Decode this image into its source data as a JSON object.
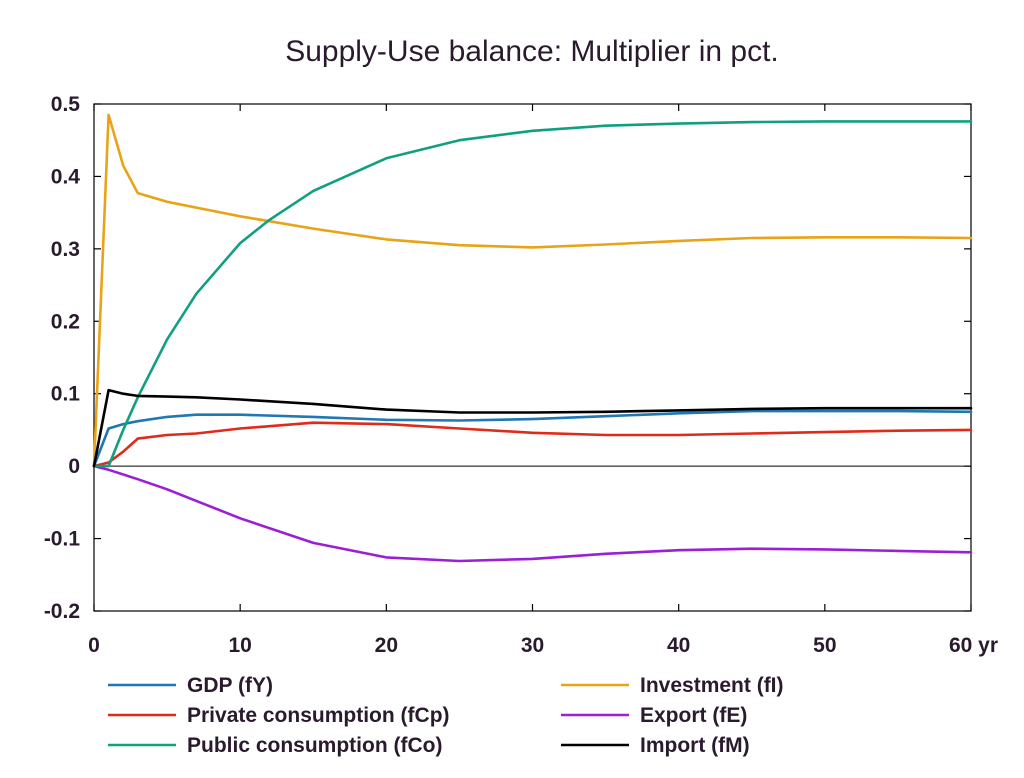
{
  "chart_data": {
    "type": "line",
    "title": "Supply-Use balance: Multiplier in pct.",
    "xlabel": "",
    "ylabel": "",
    "xlim": [
      0,
      60
    ],
    "ylim": [
      -0.2,
      0.5
    ],
    "x_ticks": [
      0,
      10,
      20,
      30,
      40,
      50,
      60
    ],
    "x_tick_labels": [
      "0",
      "10",
      "20",
      "30",
      "40",
      "50",
      "60 yr"
    ],
    "y_ticks": [
      -0.2,
      -0.1,
      0,
      0.1,
      0.2,
      0.3,
      0.4,
      0.5
    ],
    "y_tick_labels": [
      "-0.2",
      "-0.1",
      "0",
      "0.1",
      "0.2",
      "0.3",
      "0.4",
      "0.5"
    ],
    "grid": false,
    "legend_position": "bottom",
    "series": [
      {
        "name": "GDP (fY)",
        "color": "#1f77b4",
        "x": [
          0,
          1,
          2,
          3,
          5,
          7,
          10,
          15,
          20,
          25,
          30,
          35,
          40,
          45,
          50,
          55,
          60
        ],
        "y": [
          0,
          0.052,
          0.058,
          0.062,
          0.068,
          0.071,
          0.071,
          0.068,
          0.064,
          0.063,
          0.065,
          0.069,
          0.073,
          0.076,
          0.076,
          0.076,
          0.075
        ]
      },
      {
        "name": "Investment (fI)",
        "color": "#e8a317",
        "x": [
          0,
          1,
          2,
          3,
          5,
          7,
          10,
          15,
          20,
          25,
          30,
          35,
          40,
          45,
          50,
          55,
          60
        ],
        "y": [
          0,
          0.485,
          0.415,
          0.377,
          0.365,
          0.357,
          0.345,
          0.328,
          0.313,
          0.305,
          0.302,
          0.306,
          0.311,
          0.315,
          0.316,
          0.316,
          0.315
        ]
      },
      {
        "name": "Private consumption (fCp)",
        "color": "#e02a1a",
        "x": [
          0,
          1,
          2,
          3,
          5,
          7,
          10,
          15,
          20,
          25,
          30,
          35,
          40,
          45,
          50,
          55,
          60
        ],
        "y": [
          0,
          0.005,
          0.02,
          0.038,
          0.043,
          0.045,
          0.052,
          0.06,
          0.058,
          0.052,
          0.046,
          0.043,
          0.043,
          0.045,
          0.047,
          0.049,
          0.05
        ]
      },
      {
        "name": "Export (fE)",
        "color": "#9b1fd6",
        "x": [
          0,
          1,
          3,
          5,
          7,
          10,
          15,
          20,
          25,
          30,
          35,
          40,
          45,
          50,
          55,
          60
        ],
        "y": [
          0,
          -0.005,
          -0.018,
          -0.032,
          -0.048,
          -0.072,
          -0.106,
          -0.126,
          -0.131,
          -0.128,
          -0.121,
          -0.116,
          -0.114,
          -0.115,
          -0.117,
          -0.119
        ]
      },
      {
        "name": "Public consumption (fCo)",
        "color": "#10a080",
        "x": [
          0,
          1,
          2,
          3,
          5,
          7,
          10,
          12,
          15,
          20,
          25,
          30,
          35,
          40,
          45,
          50,
          55,
          60
        ],
        "y": [
          0,
          0.0,
          0.05,
          0.095,
          0.175,
          0.238,
          0.308,
          0.34,
          0.38,
          0.425,
          0.45,
          0.463,
          0.47,
          0.473,
          0.475,
          0.476,
          0.476,
          0.476
        ]
      },
      {
        "name": "Import (fM)",
        "color": "#000000",
        "x": [
          0,
          1,
          2,
          3,
          5,
          7,
          10,
          15,
          20,
          25,
          30,
          35,
          40,
          45,
          50,
          55,
          60
        ],
        "y": [
          0,
          0.105,
          0.1,
          0.097,
          0.096,
          0.095,
          0.092,
          0.086,
          0.078,
          0.074,
          0.074,
          0.075,
          0.077,
          0.079,
          0.08,
          0.08,
          0.08
        ]
      }
    ]
  }
}
